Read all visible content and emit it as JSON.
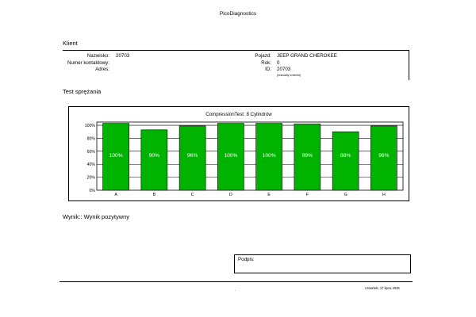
{
  "header": {
    "app_title": "PicoDiagnostics"
  },
  "client": {
    "section_title": "Klient",
    "name_label": "Nazwisko:",
    "name_value": "20703",
    "contact_label": "Numer kontaktowy:",
    "contact_value": "",
    "address_label": "Adres:",
    "address_value": ""
  },
  "vehicle": {
    "vehicle_label": "Pojazd:",
    "vehicle_value": "JEEP GRAND CHEROKEE",
    "year_label": "Rok:",
    "year_value": "0",
    "id_label": "ID:",
    "id_value": "20703",
    "id_note": "(manually entered)"
  },
  "test": {
    "section_title": "Test sprężania"
  },
  "chart_data": {
    "type": "bar",
    "title": "CompressionTest: 8 Cylindrów",
    "categories": [
      "A",
      "B",
      "C",
      "D",
      "E",
      "F",
      "G",
      "H"
    ],
    "values": [
      100,
      90,
      96,
      100,
      100,
      99,
      88,
      96
    ],
    "value_labels": [
      "100%",
      "90%",
      "96%",
      "100%",
      "100%",
      "99%",
      "88%",
      "96%"
    ],
    "bar_heights_pct": [
      103,
      93,
      99,
      103,
      103,
      102,
      90,
      99
    ],
    "yticks": [
      "100%",
      "80%",
      "60%",
      "40%",
      "20%",
      "0%"
    ],
    "ylim": [
      0,
      105
    ],
    "grid": true,
    "bar_color": "#00b300"
  },
  "result": {
    "text": "Wynik:: Wynik pozytywny"
  },
  "signature": {
    "label": "Podpis:"
  },
  "footer": {
    "dot": "-",
    "date": "czwartek, 17 lipca 2025"
  }
}
